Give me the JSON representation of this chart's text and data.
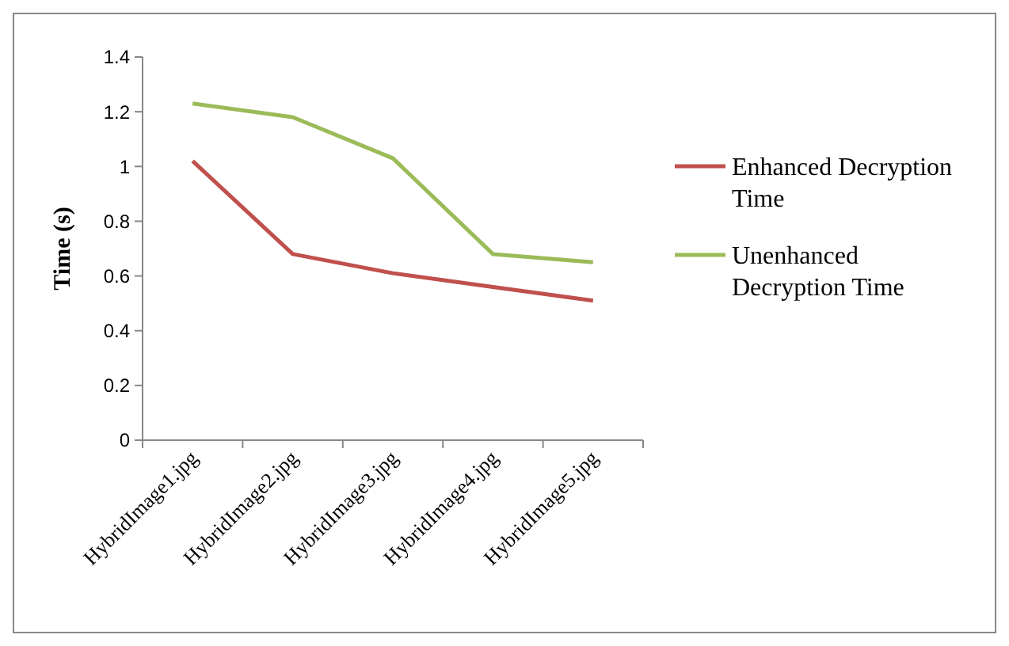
{
  "chart_data": {
    "type": "line",
    "ylabel": "Time (s)",
    "categories": [
      "HybridImage1.jpg",
      "HybridImage2.jpg",
      "HybridImage3.jpg",
      "HybridImage4.jpg",
      "HybridImage5.jpg"
    ],
    "series": [
      {
        "name": "Enhanced Decryption Time",
        "color": "#c0504d",
        "values": [
          1.02,
          0.68,
          0.61,
          0.56,
          0.51
        ]
      },
      {
        "name": "Unenhanced Decryption Time",
        "color": "#9bbb59",
        "values": [
          1.23,
          1.18,
          1.03,
          0.68,
          0.65
        ]
      }
    ],
    "ylim": [
      0,
      1.4
    ],
    "yticks": [
      0,
      0.2,
      0.4,
      0.6,
      0.8,
      1,
      1.2,
      1.4
    ],
    "legend": "right",
    "grid": false,
    "marker": "none",
    "line_style": "solid"
  }
}
